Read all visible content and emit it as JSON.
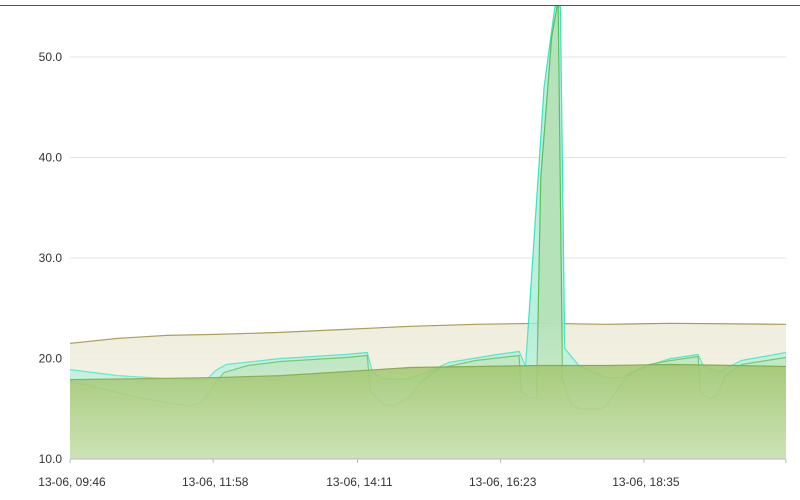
{
  "chart_data": {
    "type": "area",
    "title": "",
    "xlabel": "",
    "ylabel": "",
    "ylim": [
      10,
      55
    ],
    "grid": true,
    "legend": "none",
    "x_range": [
      "13-06 09:46",
      "13-06 20:46"
    ],
    "x_ticks": [
      {
        "t": "13-06 09:46",
        "label": "13-06, 09:46"
      },
      {
        "t": "13-06 11:58",
        "label": "13-06, 11:58"
      },
      {
        "t": "13-06 14:11",
        "label": "13-06, 14:11"
      },
      {
        "t": "13-06 16:23",
        "label": "13-06, 16:23"
      },
      {
        "t": "13-06 18:35",
        "label": "13-06, 18:35"
      }
    ],
    "y_ticks": [
      {
        "value": 10,
        "label": "10.0"
      },
      {
        "value": 20,
        "label": "20.0"
      },
      {
        "value": 30,
        "label": "30.0"
      },
      {
        "value": 40,
        "label": "40.0"
      },
      {
        "value": 50,
        "label": "50.0"
      }
    ],
    "series": [
      {
        "color": "#a59a52",
        "fill": "#ebe8d3",
        "points": [
          [
            "13-06 09:46",
            21.5
          ],
          [
            "13-06 10:30",
            22.0
          ],
          [
            "13-06 11:15",
            22.3
          ],
          [
            "13-06 12:00",
            22.4
          ],
          [
            "13-06 13:00",
            22.6
          ],
          [
            "13-06 14:00",
            22.9
          ],
          [
            "13-06 15:00",
            23.2
          ],
          [
            "13-06 16:00",
            23.4
          ],
          [
            "13-06 17:00",
            23.5
          ],
          [
            "13-06 18:00",
            23.4
          ],
          [
            "13-06 19:00",
            23.5
          ],
          [
            "13-06 20:46",
            23.4
          ]
        ]
      },
      {
        "color": "#40e0c0",
        "fill": "#a8ecd8",
        "points": [
          [
            "13-06 09:46",
            18.9
          ],
          [
            "13-06 10:30",
            18.3
          ],
          [
            "13-06 11:30",
            17.9
          ],
          [
            "13-06 11:52",
            17.9
          ],
          [
            "13-06 12:00",
            18.8
          ],
          [
            "13-06 12:10",
            19.4
          ],
          [
            "13-06 13:00",
            20.0
          ],
          [
            "13-06 14:00",
            20.4
          ],
          [
            "13-06 14:20",
            20.6
          ],
          [
            "13-06 14:25",
            18.6
          ],
          [
            "13-06 14:35",
            18.0
          ],
          [
            "13-06 14:55",
            17.9
          ],
          [
            "13-06 15:15",
            18.6
          ],
          [
            "13-06 15:35",
            19.6
          ],
          [
            "13-06 16:20",
            20.4
          ],
          [
            "13-06 16:40",
            20.7
          ],
          [
            "13-06 16:46",
            19.2
          ],
          [
            "13-06 17:00",
            42.0
          ],
          [
            "13-06 17:03",
            47.0
          ],
          [
            "13-06 17:13",
            55.0
          ],
          [
            "13-06 17:18",
            55.0
          ],
          [
            "13-06 17:22",
            21.0
          ],
          [
            "13-06 17:35",
            19.3
          ],
          [
            "13-06 18:00",
            18.1
          ],
          [
            "13-06 18:15",
            18.1
          ],
          [
            "13-06 18:30",
            19.0
          ],
          [
            "13-06 19:00",
            20.0
          ],
          [
            "13-06 19:25",
            20.4
          ],
          [
            "13-06 19:30",
            19.2
          ],
          [
            "13-06 19:45",
            18.7
          ],
          [
            "13-06 19:52",
            19.1
          ],
          [
            "13-06 20:05",
            19.8
          ],
          [
            "13-06 20:46",
            20.6
          ]
        ]
      },
      {
        "color": "#5bbf5b",
        "fill": "#b5deb0",
        "points": [
          [
            "13-06 09:46",
            17.7
          ],
          [
            "13-06 10:15",
            17.0
          ],
          [
            "13-06 10:45",
            16.2
          ],
          [
            "13-06 11:15",
            15.6
          ],
          [
            "13-06 11:35",
            15.3
          ],
          [
            "13-06 11:45",
            15.5
          ],
          [
            "13-06 11:52",
            16.3
          ],
          [
            "13-06 12:00",
            17.6
          ],
          [
            "13-06 12:08",
            18.6
          ],
          [
            "13-06 12:30",
            19.3
          ],
          [
            "13-06 13:00",
            19.7
          ],
          [
            "13-06 14:00",
            20.1
          ],
          [
            "13-06 14:20",
            20.3
          ],
          [
            "13-06 14:23",
            16.8
          ],
          [
            "13-06 14:35",
            15.4
          ],
          [
            "13-06 14:45",
            15.3
          ],
          [
            "13-06 15:00",
            16.3
          ],
          [
            "13-06 15:10",
            17.7
          ],
          [
            "13-06 15:25",
            19.0
          ],
          [
            "13-06 16:00",
            19.8
          ],
          [
            "13-06 16:40",
            20.3
          ],
          [
            "13-06 16:42",
            16.7
          ],
          [
            "13-06 16:50",
            16.1
          ],
          [
            "13-06 16:56",
            16.1
          ],
          [
            "13-06 17:00",
            38.0
          ],
          [
            "13-06 17:10",
            52.0
          ],
          [
            "13-06 17:15",
            55.0
          ],
          [
            "13-06 17:16",
            55.0
          ],
          [
            "13-06 17:20",
            18.0
          ],
          [
            "13-06 17:28",
            15.5
          ],
          [
            "13-06 17:35",
            15.0
          ],
          [
            "13-06 17:55",
            15.0
          ],
          [
            "13-06 18:00",
            15.3
          ],
          [
            "13-06 18:10",
            16.8
          ],
          [
            "13-06 18:20",
            18.3
          ],
          [
            "13-06 18:40",
            19.4
          ],
          [
            "13-06 19:00",
            19.8
          ],
          [
            "13-06 19:25",
            20.2
          ],
          [
            "13-06 19:27",
            16.7
          ],
          [
            "13-06 19:35",
            16.0
          ],
          [
            "13-06 19:42",
            16.3
          ],
          [
            "13-06 19:50",
            18.3
          ],
          [
            "13-06 20:05",
            19.4
          ],
          [
            "13-06 20:46",
            20.1
          ]
        ]
      },
      {
        "color": "#6a9a25",
        "fill": "#8cb84c",
        "points": [
          [
            "13-06 09:46",
            17.9
          ],
          [
            "13-06 11:00",
            18.0
          ],
          [
            "13-06 12:00",
            18.1
          ],
          [
            "13-06 13:00",
            18.3
          ],
          [
            "13-06 14:00",
            18.7
          ],
          [
            "13-06 15:00",
            19.1
          ],
          [
            "13-06 16:00",
            19.2
          ],
          [
            "13-06 17:00",
            19.3
          ],
          [
            "13-06 18:00",
            19.3
          ],
          [
            "13-06 19:00",
            19.4
          ],
          [
            "13-06 20:00",
            19.3
          ],
          [
            "13-06 20:46",
            19.2
          ]
        ]
      }
    ]
  }
}
